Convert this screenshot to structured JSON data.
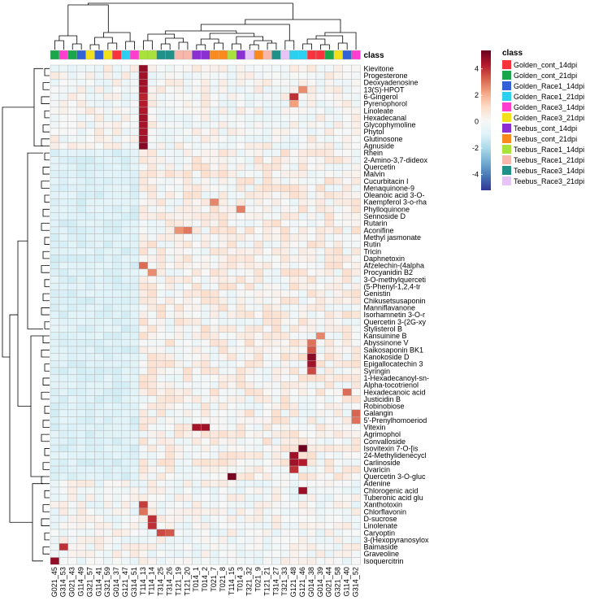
{
  "chart_data": {
    "type": "heatmap",
    "title": "",
    "annotation_title": "class",
    "legend_title": "class",
    "colorbar": {
      "ticks": [
        4,
        2,
        0,
        -2,
        -4
      ],
      "range": [
        -5.2,
        5.4
      ],
      "colors": [
        "#313695",
        "#4575b4",
        "#74add1",
        "#abd9e9",
        "#e0f3f8",
        "#f7f7f7",
        "#fddbc7",
        "#f4a582",
        "#d6604d",
        "#b2182b",
        "#67001f"
      ]
    },
    "classes": [
      {
        "name": "Golden_cont_14dpi",
        "color": "#f8333c"
      },
      {
        "name": "Golden_cont_21dpi",
        "color": "#1aa64a"
      },
      {
        "name": "Golden_Race1_14dpi",
        "color": "#3361d6"
      },
      {
        "name": "Golden_Race1_21dpi",
        "color": "#2bd0f0"
      },
      {
        "name": "Golden_Race3_14dpi",
        "color": "#ff3ecf"
      },
      {
        "name": "Golden_Race3_21dpi",
        "color": "#f2e01a"
      },
      {
        "name": "Teebus_cont_14dpi",
        "color": "#8b2fd3"
      },
      {
        "name": "Teebus_cont_21dpi",
        "color": "#fb8a1e"
      },
      {
        "name": "Teebus_Race1_14dpi",
        "color": "#a8e23a"
      },
      {
        "name": "Teebus_Race1_21dpi",
        "color": "#f8b7ab"
      },
      {
        "name": "Teebus_Race3_14dpi",
        "color": "#1f9188"
      },
      {
        "name": "Teebus_Race3_21dpi",
        "color": "#e8c3f5"
      }
    ],
    "columns": [
      "G021_45",
      "G314_53",
      "G021_43",
      "G114_49",
      "G321_57",
      "G114_41",
      "G321_59",
      "G014_37",
      "G121_47",
      "G314_51",
      "T114_13",
      "T114_14",
      "T314_25",
      "T314_26",
      "T121_19",
      "T121_20",
      "T014_1",
      "T014_2",
      "T021_7",
      "T021_8",
      "T114_15",
      "T014_3",
      "T321_32",
      "T021_9",
      "T121_21",
      "T314_27",
      "T321_33",
      "G121_48",
      "G121_46",
      "G014_38",
      "G014_39",
      "G021_44",
      "G321_58",
      "G114_40",
      "G314_52"
    ],
    "column_classes": [
      1,
      4,
      1,
      2,
      5,
      2,
      5,
      0,
      3,
      4,
      8,
      8,
      10,
      10,
      9,
      9,
      6,
      6,
      7,
      7,
      8,
      6,
      11,
      7,
      9,
      10,
      11,
      3,
      3,
      0,
      0,
      1,
      5,
      2,
      4
    ],
    "rows": [
      "Kievitone",
      "Progesterone",
      "Deoxyadenosine",
      "13(S)-HPOT",
      "6-Gingerol",
      "Pyrenophorol",
      "Linoleate",
      "Hexadecanal",
      "Glycophymoline",
      "Phytol",
      "Glutinosone",
      "Agnuside",
      "Rhein",
      "2-Amino-3,7-dideox",
      "Quercetin",
      "Malvin",
      "Cucurbitacin I",
      "Menaquinone-9",
      "Oleanoic acid 3-O-",
      "Kaempferol 3-o-rha",
      "Phylloquinone",
      "Sennoside D",
      "Rutarin",
      "Aconifine",
      "Methyl jasmonate",
      "Rutin",
      "Tricin",
      "Daphnetoxin",
      "Afzelechin-(4alpha",
      "Procyanidin B2",
      "3-O-methylquerceti",
      "(5-Phenyl-1,2,4-tr",
      "Genistin",
      "Chikusetsusaponin",
      "Manniflavanone",
      "Isorhamnetin 3-O-r",
      "Quercetin 3-(2G-xy",
      "Stylisterol B",
      "Kansuinine B",
      "Abyssinone V",
      "Saikosaponin BK1",
      "Kanokoside D",
      "Epigallocatechin 3",
      "Syringin",
      "1-Hexadecanoyl-sn-",
      "Alpha-tocotrienol",
      "Hexadecanoic acid",
      "Justicidin B",
      "Robinobiose",
      "Galangin",
      "5'-Prenylhomoeriod",
      "Vitexin",
      "Agrimophol",
      "Convalloside",
      "Isovitexin 7-O-[is",
      "24-Methylidenecycl",
      "Carlinoside",
      "Uvaricin",
      "Quercetin 3-O-gluc",
      "Adenine",
      "Chlorogenic acid",
      "Tuberonic acid glu",
      "Xanthotoxin",
      "Chlorflavonin",
      "D-sucrose",
      "Linolenate",
      "Caryoptin",
      "3-(Hexopyranosylox",
      "Baimaside",
      "Graveoline",
      "Isoquercitrin"
    ],
    "highlights": [
      {
        "row": "Kievitone",
        "col": "T114_13",
        "value": 4.8
      },
      {
        "row": "Progesterone",
        "col": "T114_13",
        "value": 4.6
      },
      {
        "row": "Deoxyadenosine",
        "col": "T114_13",
        "value": 4.6
      },
      {
        "row": "13(S)-HPOT",
        "col": "T114_13",
        "value": 4.5
      },
      {
        "row": "6-Gingerol",
        "col": "T114_13",
        "value": 4.2
      },
      {
        "row": "Pyrenophorol",
        "col": "T114_13",
        "value": 4.3
      },
      {
        "row": "Linoleate",
        "col": "T114_13",
        "value": 4.4
      },
      {
        "row": "Hexadecanal",
        "col": "T114_13",
        "value": 4.6
      },
      {
        "row": "Glycophymoline",
        "col": "T114_13",
        "value": 4.5
      },
      {
        "row": "Phytol",
        "col": "T114_13",
        "value": 4.5
      },
      {
        "row": "Glutinosone",
        "col": "T114_13",
        "value": 4.6
      },
      {
        "row": "Agnuside",
        "col": "T114_13",
        "value": 5.0
      },
      {
        "row": "6-Gingerol",
        "col": "G121_48",
        "value": 4.0
      },
      {
        "row": "Pyrenophorol",
        "col": "G121_48",
        "value": 2.3
      },
      {
        "row": "13(S)-HPOT",
        "col": "G121_46",
        "value": 2.6
      },
      {
        "row": "Aconifine",
        "col": "T121_20",
        "value": 2.9
      },
      {
        "row": "Aconifine",
        "col": "T121_19",
        "value": 2.5
      },
      {
        "row": "Afzelechin-(4alpha",
        "col": "T114_13",
        "value": 3.1
      },
      {
        "row": "Procyanidin B2",
        "col": "T114_14",
        "value": 2.6
      },
      {
        "row": "Kaempferol 3-o-rha",
        "col": "T021_7",
        "value": 2.7
      },
      {
        "row": "Phylloquinone",
        "col": "T014_3",
        "value": 2.8
      },
      {
        "row": "Abyssinone V",
        "col": "G014_38",
        "value": 3.0
      },
      {
        "row": "Saikosaponin BK1",
        "col": "G014_38",
        "value": 3.4
      },
      {
        "row": "Kanokoside D",
        "col": "G014_38",
        "value": 4.9
      },
      {
        "row": "Epigallocatechin 3",
        "col": "G014_38",
        "value": 4.6
      },
      {
        "row": "Syringin",
        "col": "G014_38",
        "value": 3.6
      },
      {
        "row": "Kansuinine B",
        "col": "G014_39",
        "value": 2.7
      },
      {
        "row": "Hexadecanoic acid",
        "col": "G114_40",
        "value": 3.1
      },
      {
        "row": "Galangin",
        "col": "G314_52",
        "value": 3.2
      },
      {
        "row": "5'-Prenylhomoeriod",
        "col": "G314_52",
        "value": 3.0
      },
      {
        "row": "Vitexin",
        "col": "T014_1",
        "value": 4.5
      },
      {
        "row": "Vitexin",
        "col": "T014_2",
        "value": 4.6
      },
      {
        "row": "Isovitexin 7-O-[is",
        "col": "G121_46",
        "value": 5.3
      },
      {
        "row": "24-Methylidenecycl",
        "col": "G121_48",
        "value": 4.6
      },
      {
        "row": "Carlinoside",
        "col": "G121_48",
        "value": 4.6
      },
      {
        "row": "Carlinoside",
        "col": "G121_46",
        "value": 4.3
      },
      {
        "row": "Uvaricin",
        "col": "G121_48",
        "value": 4.0
      },
      {
        "row": "Quercetin 3-O-gluc",
        "col": "T114_15",
        "value": 5.2
      },
      {
        "row": "Chlorogenic acid",
        "col": "G121_46",
        "value": 4.7
      },
      {
        "row": "Xanthotoxin",
        "col": "T114_13",
        "value": 3.8
      },
      {
        "row": "Chlorflavonin",
        "col": "T114_13",
        "value": 3.0
      },
      {
        "row": "D-sucrose",
        "col": "T114_14",
        "value": 4.0
      },
      {
        "row": "Linolenate",
        "col": "T114_14",
        "value": 4.0
      },
      {
        "row": "Caryoptin",
        "col": "T314_25",
        "value": 3.6
      },
      {
        "row": "Caryoptin",
        "col": "T314_26",
        "value": 3.4
      },
      {
        "row": "Baimaside",
        "col": "G314_53",
        "value": 4.0
      },
      {
        "row": "Isoquercitrin",
        "col": "G021_45",
        "value": 4.8
      }
    ]
  }
}
